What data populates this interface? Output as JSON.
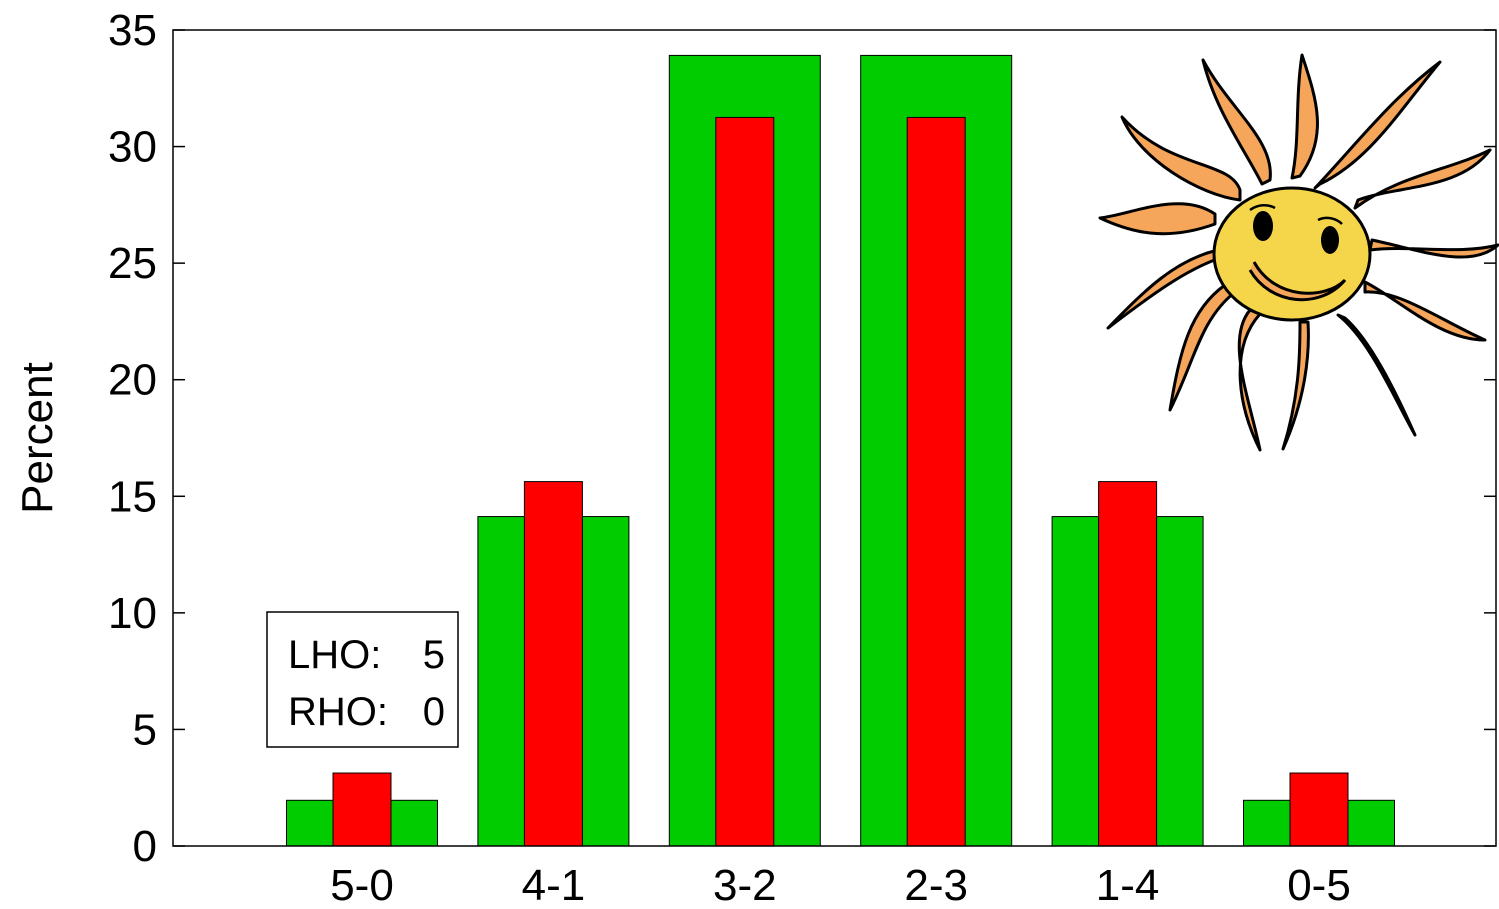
{
  "chart_data": {
    "type": "bar",
    "title": "",
    "xlabel": "",
    "ylabel": "Percent",
    "ylim": [
      0,
      35
    ],
    "yticks": [
      0,
      5,
      10,
      15,
      20,
      25,
      30,
      35
    ],
    "categories": [
      "5-0",
      "4-1",
      "3-2",
      "2-3",
      "1-4",
      "0-5"
    ],
    "series": [
      {
        "values": [
          1.96,
          14.13,
          33.91,
          33.91,
          14.13,
          1.96
        ],
        "color": "#00cc00"
      },
      {
        "values": [
          3.13,
          15.63,
          31.25,
          31.25,
          15.63,
          3.13
        ],
        "color": "#ff0000"
      }
    ],
    "grid": false,
    "annotation": {
      "lines": [
        {
          "label": "LHO:",
          "value": "5"
        },
        {
          "label": "RHO:",
          "value": "0"
        }
      ]
    },
    "decoration": "smiling-sun-clipart"
  }
}
